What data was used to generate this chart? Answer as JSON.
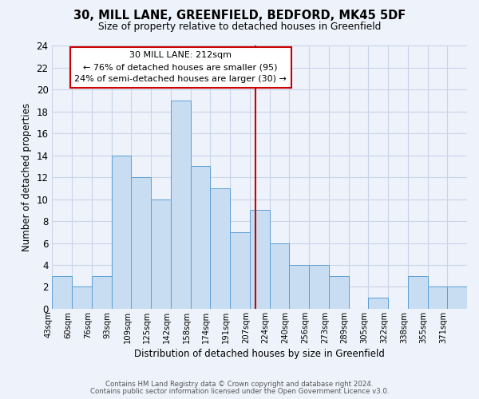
{
  "title": "30, MILL LANE, GREENFIELD, BEDFORD, MK45 5DF",
  "subtitle": "Size of property relative to detached houses in Greenfield",
  "xlabel": "Distribution of detached houses by size in Greenfield",
  "ylabel": "Number of detached properties",
  "bin_labels": [
    "43sqm",
    "60sqm",
    "76sqm",
    "93sqm",
    "109sqm",
    "125sqm",
    "142sqm",
    "158sqm",
    "174sqm",
    "191sqm",
    "207sqm",
    "224sqm",
    "240sqm",
    "256sqm",
    "273sqm",
    "289sqm",
    "305sqm",
    "322sqm",
    "338sqm",
    "355sqm",
    "371sqm"
  ],
  "bar_heights": [
    3,
    2,
    3,
    14,
    12,
    10,
    19,
    13,
    11,
    7,
    9,
    6,
    4,
    4,
    3,
    0,
    1,
    0,
    3,
    2,
    2
  ],
  "bar_color": "#c8ddf2",
  "bar_edge_color": "#5b9fd4",
  "property_bin_index": 10,
  "annotation_line1": "30 MILL LANE: 212sqm",
  "annotation_line2": "← 76% of detached houses are smaller (95)",
  "annotation_line3": "24% of semi-detached houses are larger (30) →",
  "annotation_box_color": "#ffffff",
  "annotation_box_edge_color": "#cc0000",
  "vline_color": "#cc0000",
  "ylim": [
    0,
    24
  ],
  "yticks": [
    0,
    2,
    4,
    6,
    8,
    10,
    12,
    14,
    16,
    18,
    20,
    22,
    24
  ],
  "grid_color": "#c8d4e8",
  "bg_color": "#eef2fa",
  "footnote1": "Contains HM Land Registry data © Crown copyright and database right 2024.",
  "footnote2": "Contains public sector information licensed under the Open Government Licence v3.0."
}
